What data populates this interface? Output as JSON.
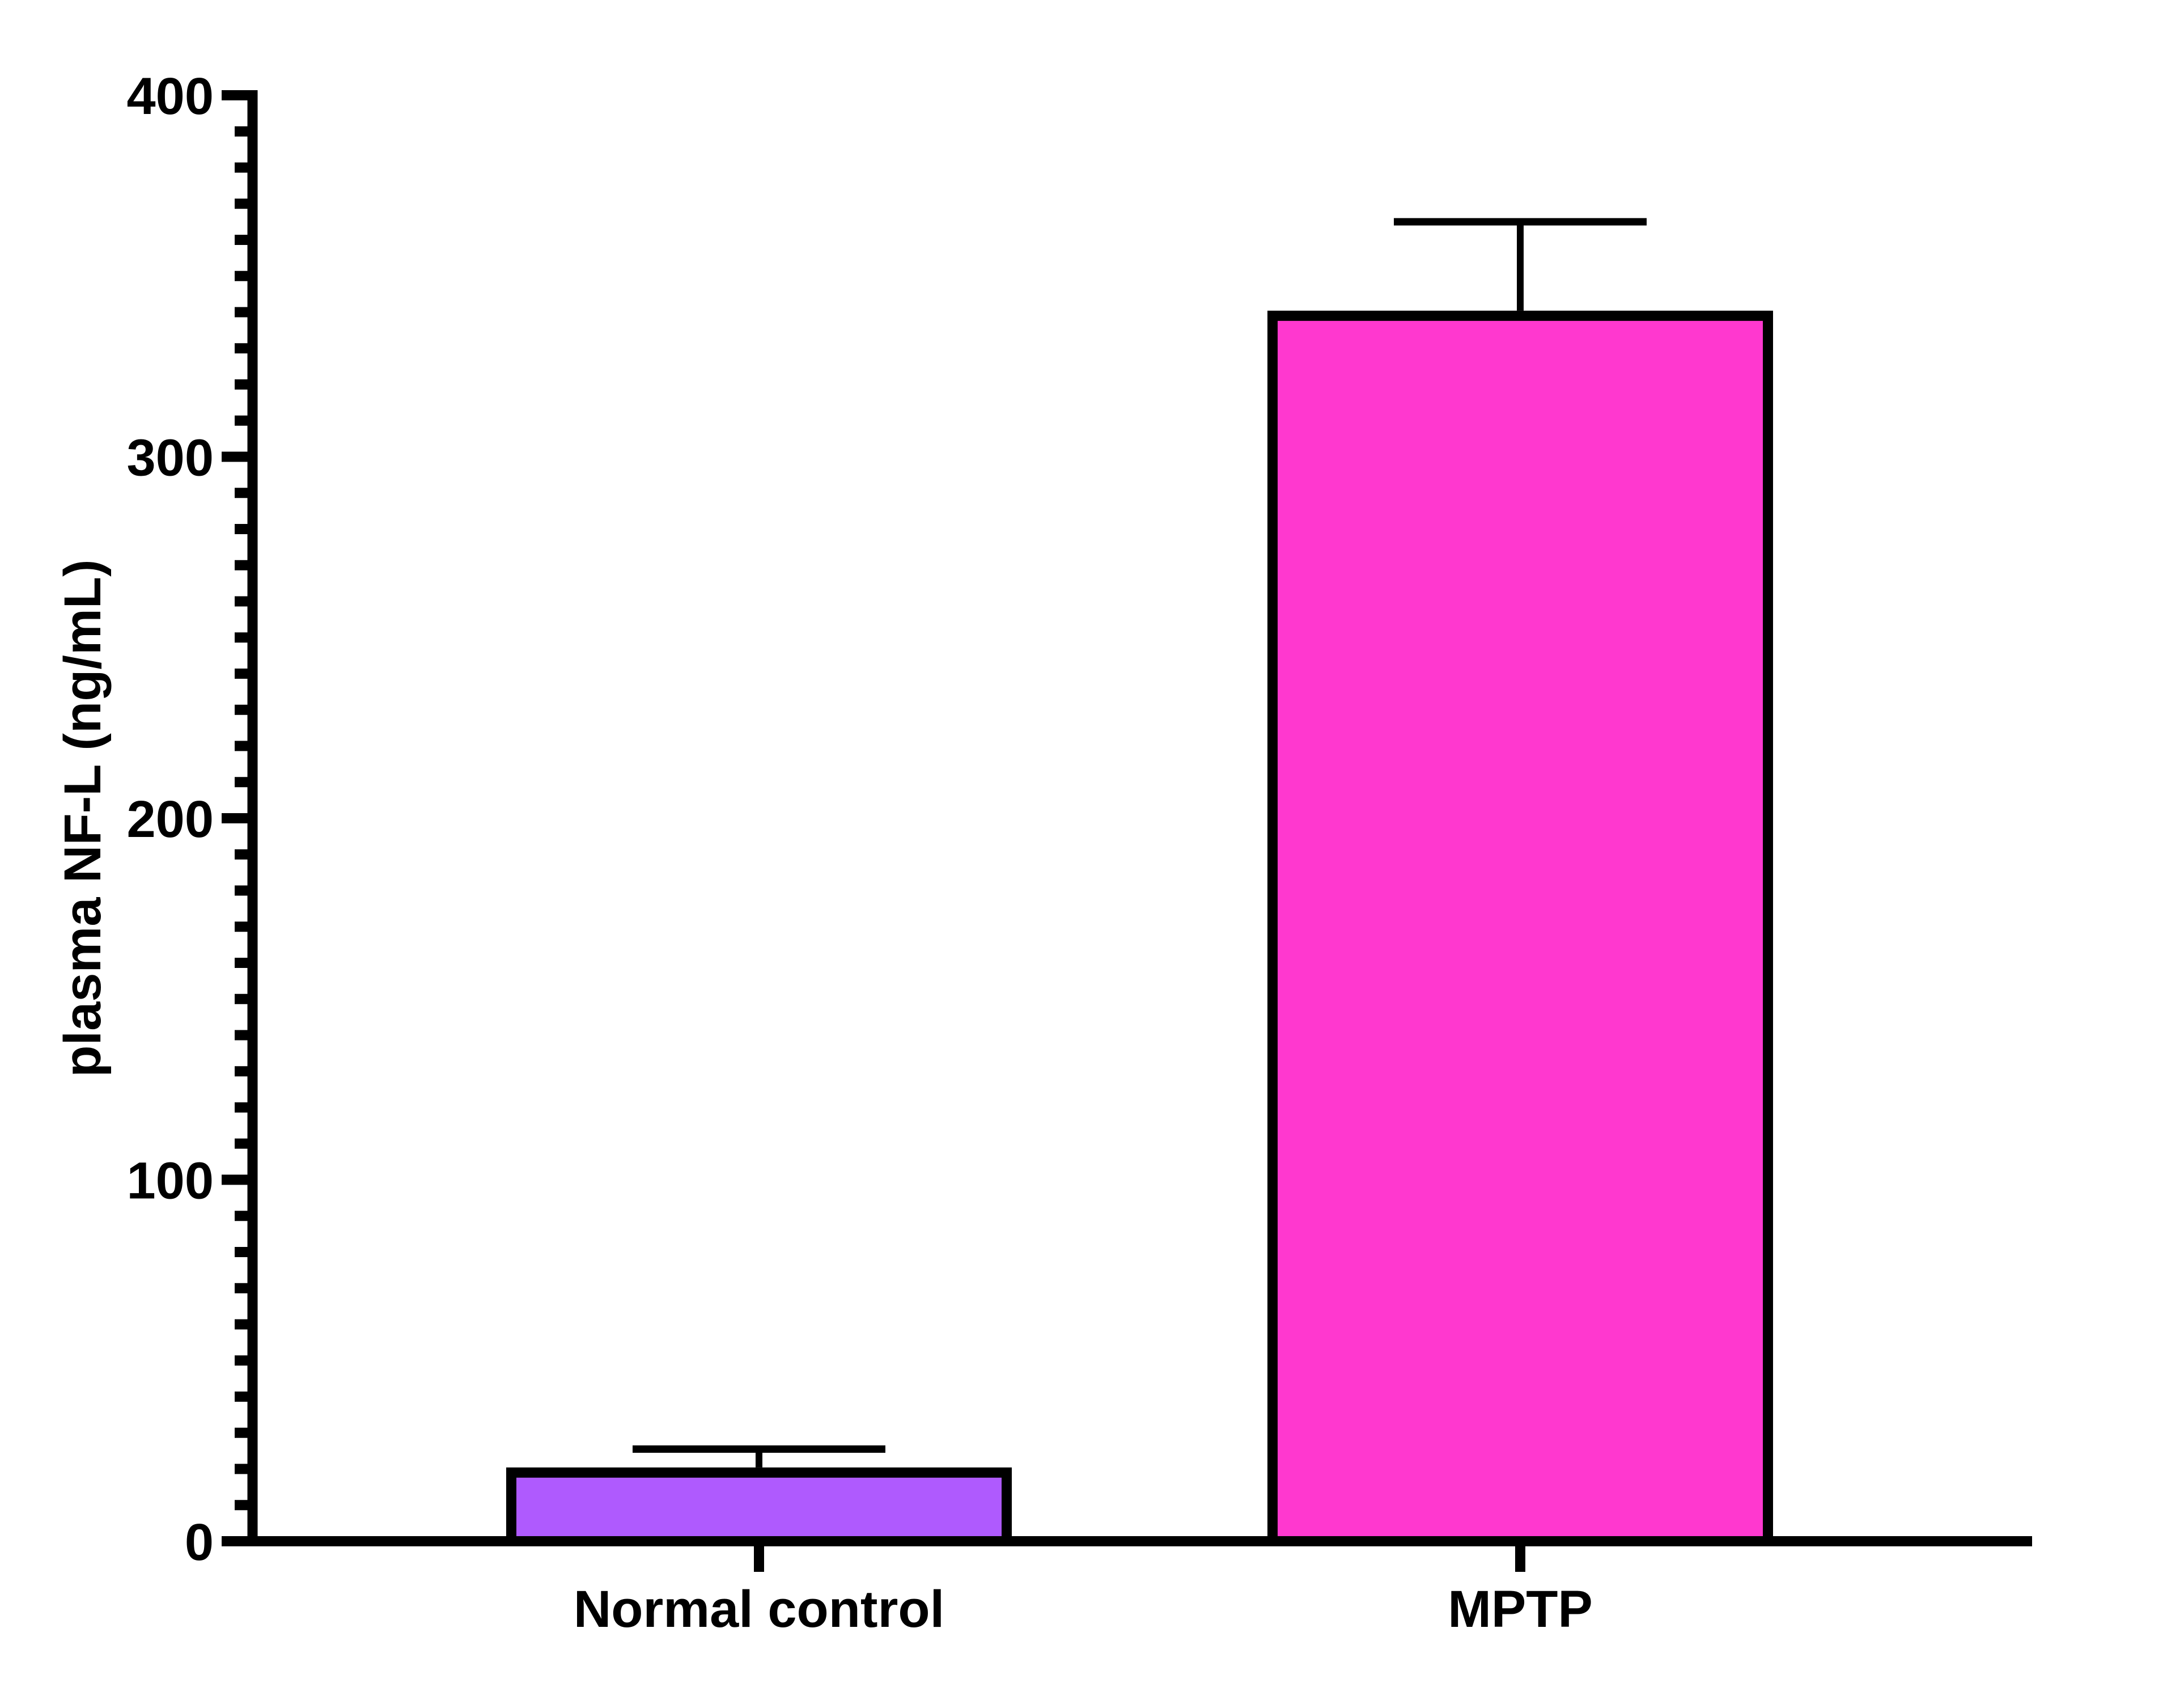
{
  "chart_data": {
    "type": "bar",
    "title": "",
    "xlabel": "",
    "ylabel": "plasma NF-L (ng/mL)",
    "categories": [
      "Normal control",
      "MPTP"
    ],
    "values": [
      19,
      339
    ],
    "error_bars": [
      6.5,
      26
    ],
    "error_bar_tops": [
      25.5,
      365
    ],
    "colors": [
      "#AF5AFE",
      "#FF38CF"
    ],
    "ylim": [
      0,
      400
    ],
    "yticks_major": [
      0,
      100,
      200,
      300,
      400
    ],
    "ytick_labels": [
      "0",
      "100",
      "200",
      "300",
      "400"
    ],
    "yticks_minor_step": 10,
    "grid": false,
    "legend": null
  },
  "axes": {
    "y_label": "plasma NF-L (ng/mL)",
    "x_tick_labels": [
      "Normal control",
      "MPTP"
    ]
  }
}
